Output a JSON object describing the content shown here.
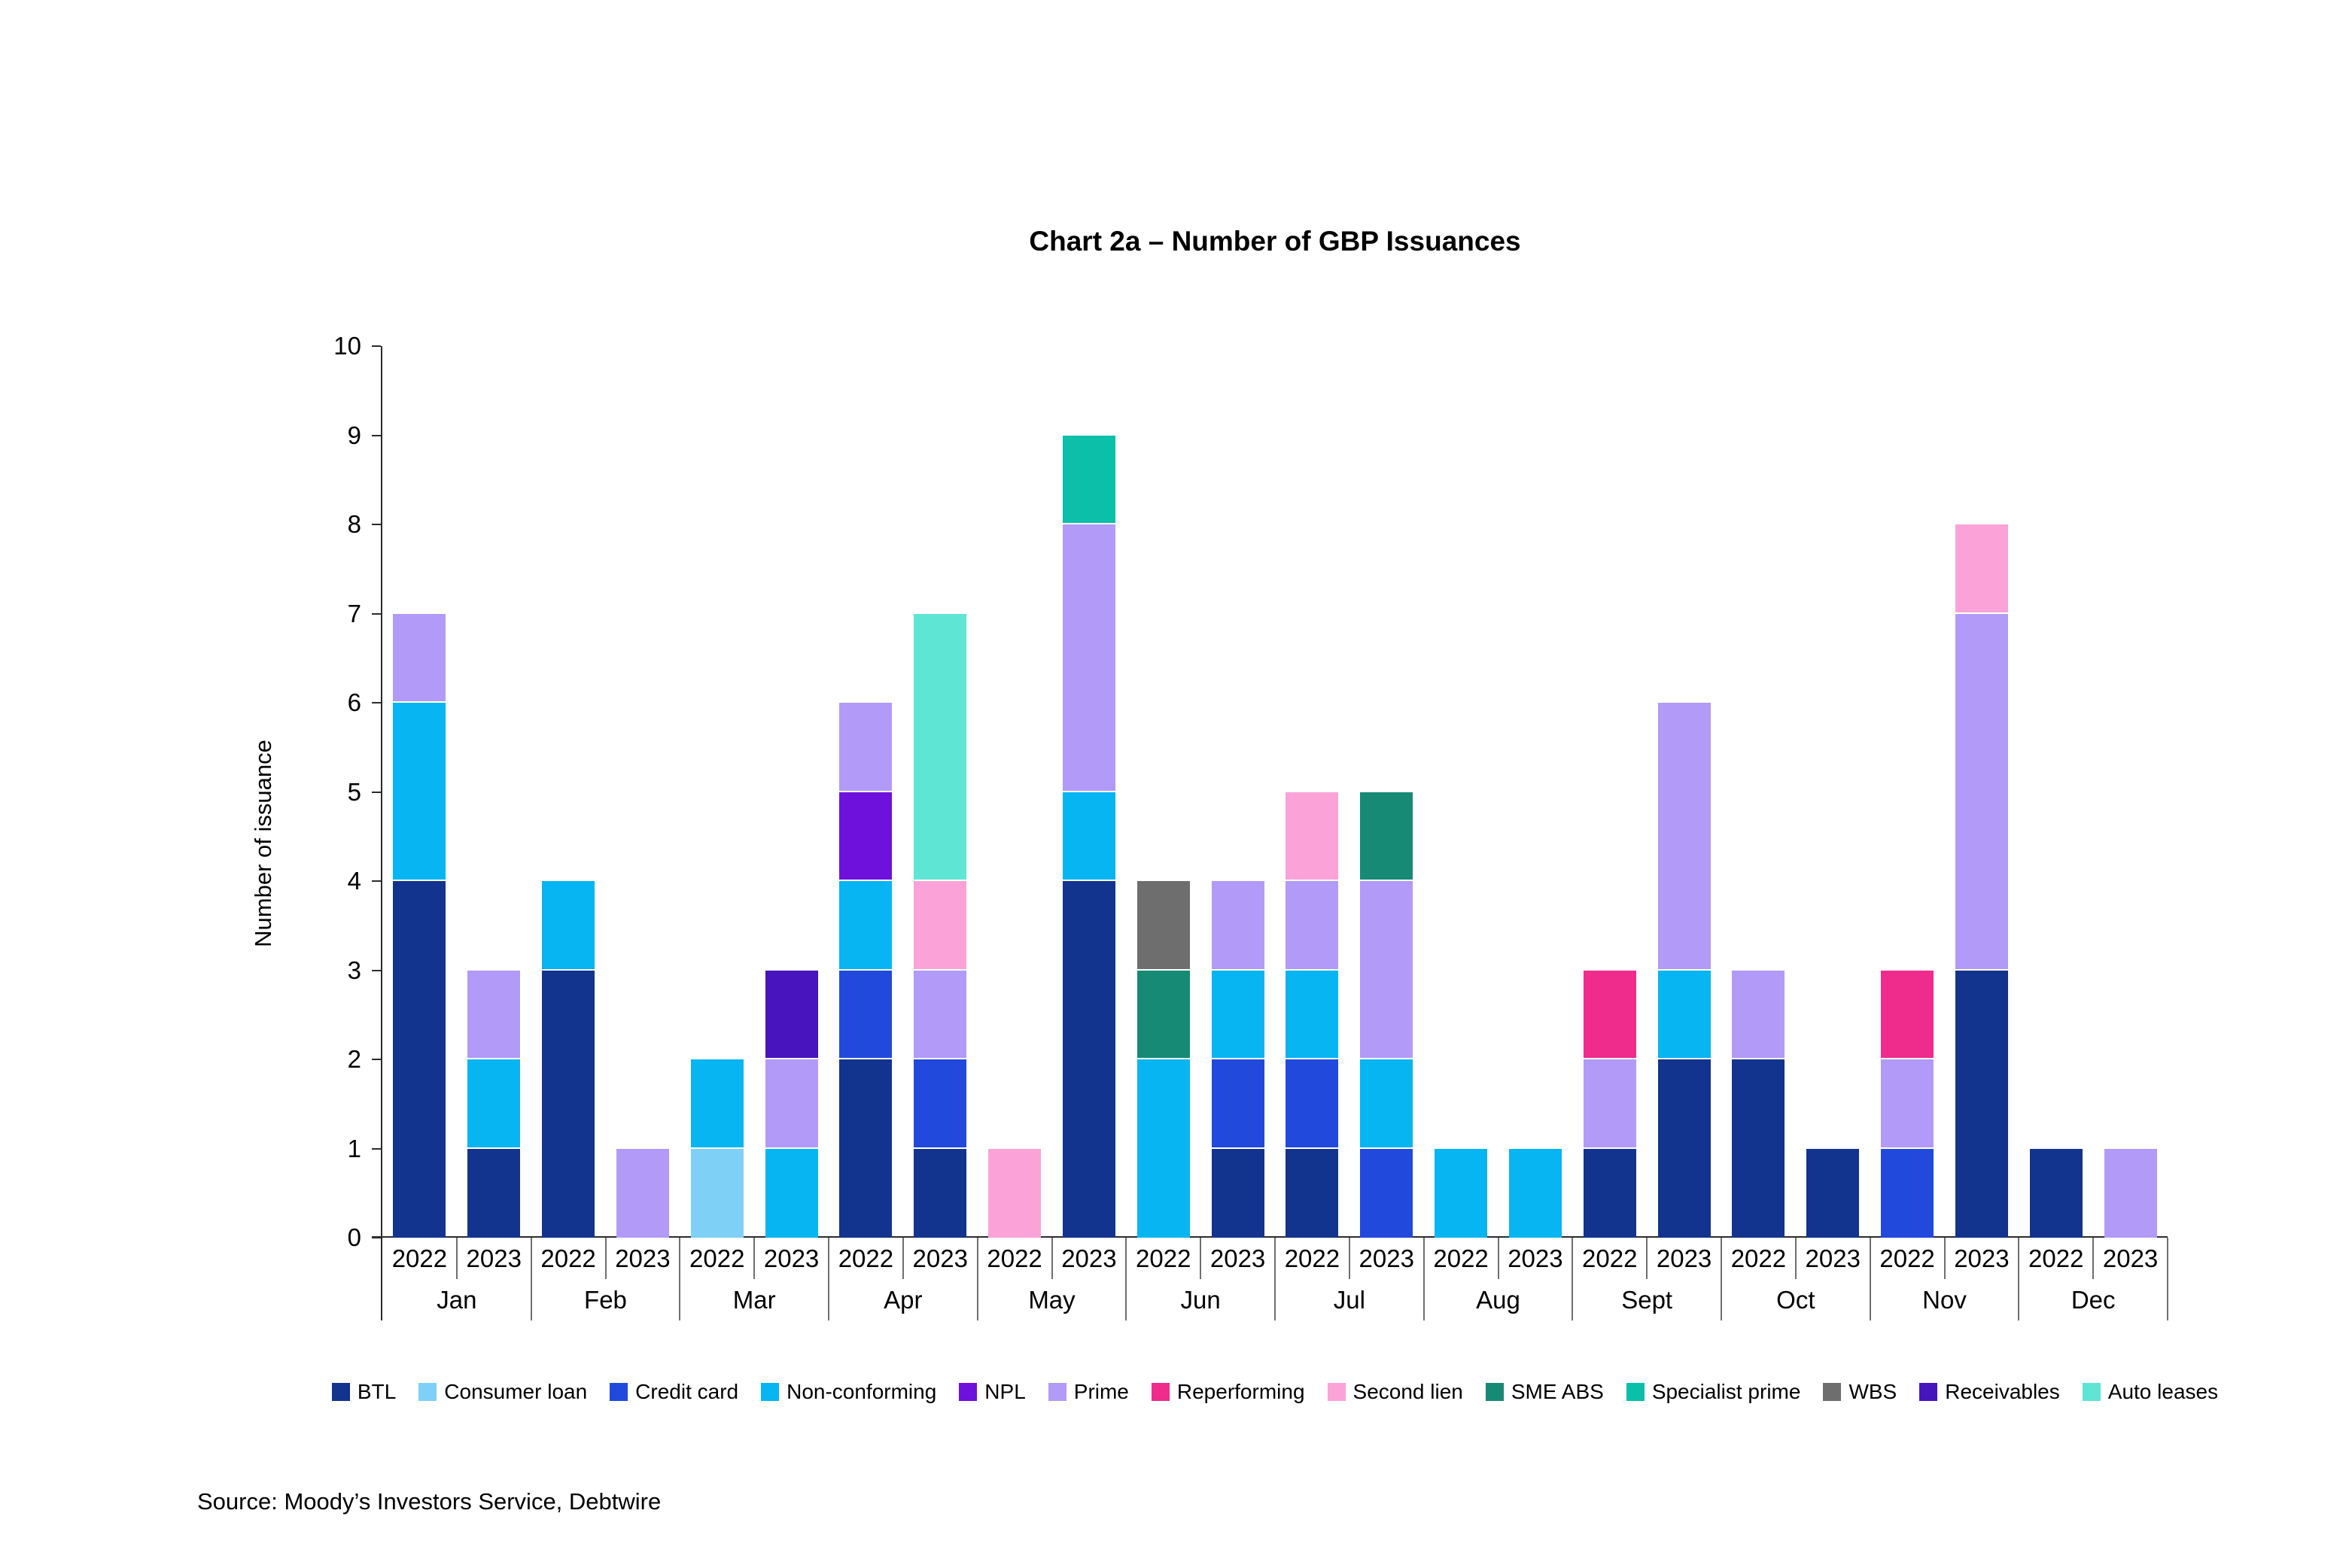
{
  "source": "Source: Moody’s Investors Service, Debtwire",
  "chart_data": {
    "type": "bar",
    "stacked": true,
    "title": "Chart 2a – Number of GBP Issuances",
    "xlabel": "",
    "ylabel": "Number of issuance",
    "ylim": [
      0,
      10
    ],
    "yticks": [
      0,
      1,
      2,
      3,
      4,
      5,
      6,
      7,
      8,
      9,
      10
    ],
    "grid": false,
    "legend_position": "bottom",
    "legend": [
      "BTL",
      "Consumer loan",
      "Credit card",
      "Non-conforming",
      "NPL",
      "Prime",
      "Reperforming",
      "Second lien",
      "SME ABS",
      "Specialist prime",
      "WBS",
      "Receivables",
      "Auto leases"
    ],
    "colors": {
      "BTL": "#12338E",
      "Consumer loan": "#7ED0F7",
      "Credit card": "#2149DC",
      "Non-conforming": "#06B5F2",
      "NPL": "#6E11DC",
      "Prime": "#B29AF8",
      "Reperforming": "#EF2B8C",
      "Second lien": "#FBA3D9",
      "SME ABS": "#168A75",
      "Specialist prime": "#0BBFA9",
      "WBS": "#6E6E6E",
      "Receivables": "#4714BE",
      "Auto leases": "#5FE5D3"
    },
    "year_labels": [
      "2022",
      "2023"
    ],
    "months": [
      {
        "month": "Jan",
        "bars": [
          {
            "year": "2022",
            "segments": [
              [
                "BTL",
                4
              ],
              [
                "Non-conforming",
                2
              ],
              [
                "Prime",
                1
              ]
            ]
          },
          {
            "year": "2023",
            "segments": [
              [
                "BTL",
                1
              ],
              [
                "Non-conforming",
                1
              ],
              [
                "Prime",
                1
              ]
            ]
          }
        ]
      },
      {
        "month": "Feb",
        "bars": [
          {
            "year": "2022",
            "segments": [
              [
                "BTL",
                3
              ],
              [
                "Non-conforming",
                1
              ]
            ]
          },
          {
            "year": "2023",
            "segments": [
              [
                "Prime",
                1
              ]
            ]
          }
        ]
      },
      {
        "month": "Mar",
        "bars": [
          {
            "year": "2022",
            "segments": [
              [
                "Consumer loan",
                1
              ],
              [
                "Non-conforming",
                1
              ]
            ]
          },
          {
            "year": "2023",
            "segments": [
              [
                "Non-conforming",
                1
              ],
              [
                "Prime",
                1
              ],
              [
                "Receivables",
                1
              ]
            ]
          }
        ]
      },
      {
        "month": "Apr",
        "bars": [
          {
            "year": "2022",
            "segments": [
              [
                "BTL",
                2
              ],
              [
                "Credit card",
                1
              ],
              [
                "Non-conforming",
                1
              ],
              [
                "NPL",
                1
              ],
              [
                "Prime",
                1
              ]
            ]
          },
          {
            "year": "2023",
            "segments": [
              [
                "BTL",
                1
              ],
              [
                "Credit card",
                1
              ],
              [
                "Prime",
                1
              ],
              [
                "Second lien",
                1
              ],
              [
                "Auto leases",
                3
              ]
            ]
          }
        ]
      },
      {
        "month": "May",
        "bars": [
          {
            "year": "2022",
            "segments": [
              [
                "Second lien",
                1
              ]
            ]
          },
          {
            "year": "2023",
            "segments": [
              [
                "BTL",
                4
              ],
              [
                "Non-conforming",
                1
              ],
              [
                "Prime",
                3
              ],
              [
                "Specialist prime",
                1
              ]
            ]
          }
        ]
      },
      {
        "month": "Jun",
        "bars": [
          {
            "year": "2022",
            "segments": [
              [
                "Non-conforming",
                2
              ],
              [
                "SME ABS",
                1
              ],
              [
                "WBS",
                1
              ]
            ]
          },
          {
            "year": "2023",
            "segments": [
              [
                "BTL",
                1
              ],
              [
                "Credit card",
                1
              ],
              [
                "Non-conforming",
                1
              ],
              [
                "Prime",
                1
              ]
            ]
          }
        ]
      },
      {
        "month": "Jul",
        "bars": [
          {
            "year": "2022",
            "segments": [
              [
                "BTL",
                1
              ],
              [
                "Credit card",
                1
              ],
              [
                "Non-conforming",
                1
              ],
              [
                "Prime",
                1
              ],
              [
                "Second lien",
                1
              ]
            ]
          },
          {
            "year": "2023",
            "segments": [
              [
                "Credit card",
                1
              ],
              [
                "Non-conforming",
                1
              ],
              [
                "Prime",
                2
              ],
              [
                "SME ABS",
                1
              ]
            ]
          }
        ]
      },
      {
        "month": "Aug",
        "bars": [
          {
            "year": "2022",
            "segments": [
              [
                "Non-conforming",
                1
              ]
            ]
          },
          {
            "year": "2023",
            "segments": [
              [
                "Non-conforming",
                1
              ]
            ]
          }
        ]
      },
      {
        "month": "Sept",
        "bars": [
          {
            "year": "2022",
            "segments": [
              [
                "BTL",
                1
              ],
              [
                "Prime",
                1
              ],
              [
                "Reperforming",
                1
              ]
            ]
          },
          {
            "year": "2023",
            "segments": [
              [
                "BTL",
                2
              ],
              [
                "Non-conforming",
                1
              ],
              [
                "Prime",
                3
              ]
            ]
          }
        ]
      },
      {
        "month": "Oct",
        "bars": [
          {
            "year": "2022",
            "segments": [
              [
                "BTL",
                2
              ],
              [
                "Prime",
                1
              ]
            ]
          },
          {
            "year": "2023",
            "segments": [
              [
                "BTL",
                1
              ]
            ]
          }
        ]
      },
      {
        "month": "Nov",
        "bars": [
          {
            "year": "2022",
            "segments": [
              [
                "Credit card",
                1
              ],
              [
                "Prime",
                1
              ],
              [
                "Reperforming",
                1
              ]
            ]
          },
          {
            "year": "2023",
            "segments": [
              [
                "BTL",
                3
              ],
              [
                "Prime",
                4
              ],
              [
                "Second lien",
                1
              ]
            ]
          }
        ]
      },
      {
        "month": "Dec",
        "bars": [
          {
            "year": "2022",
            "segments": [
              [
                "BTL",
                1
              ]
            ]
          },
          {
            "year": "2023",
            "segments": [
              [
                "Prime",
                1
              ]
            ]
          }
        ]
      }
    ]
  }
}
